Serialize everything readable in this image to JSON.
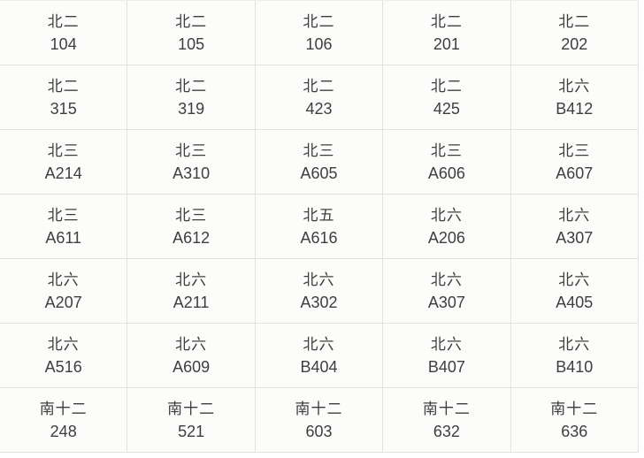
{
  "colors": {
    "cell_background": "#fcfcfb",
    "border": "#e2e2e0",
    "text": "#3e3e3e",
    "page_background": "#ffffff"
  },
  "grid": {
    "columns": 5,
    "row_count": 7,
    "rows": [
      [
        {
          "building": "北二",
          "room": "104"
        },
        {
          "building": "北二",
          "room": "105"
        },
        {
          "building": "北二",
          "room": "106"
        },
        {
          "building": "北二",
          "room": "201"
        },
        {
          "building": "北二",
          "room": "202"
        }
      ],
      [
        {
          "building": "北二",
          "room": "315"
        },
        {
          "building": "北二",
          "room": "319"
        },
        {
          "building": "北二",
          "room": "423"
        },
        {
          "building": "北二",
          "room": "425"
        },
        {
          "building": "北六",
          "room": "B412"
        }
      ],
      [
        {
          "building": "北三",
          "room": "A214"
        },
        {
          "building": "北三",
          "room": "A310"
        },
        {
          "building": "北三",
          "room": "A605"
        },
        {
          "building": "北三",
          "room": "A606"
        },
        {
          "building": "北三",
          "room": "A607"
        }
      ],
      [
        {
          "building": "北三",
          "room": "A611"
        },
        {
          "building": "北三",
          "room": "A612"
        },
        {
          "building": "北五",
          "room": "A616"
        },
        {
          "building": "北六",
          "room": "A206"
        },
        {
          "building": "北六",
          "room": "A307"
        }
      ],
      [
        {
          "building": "北六",
          "room": "A207"
        },
        {
          "building": "北六",
          "room": "A211"
        },
        {
          "building": "北六",
          "room": "A302"
        },
        {
          "building": "北六",
          "room": "A307"
        },
        {
          "building": "北六",
          "room": "A405"
        }
      ],
      [
        {
          "building": "北六",
          "room": "A516"
        },
        {
          "building": "北六",
          "room": "A609"
        },
        {
          "building": "北六",
          "room": "B404"
        },
        {
          "building": "北六",
          "room": "B407"
        },
        {
          "building": "北六",
          "room": "B410"
        }
      ],
      [
        {
          "building": "南十二",
          "room": "248"
        },
        {
          "building": "南十二",
          "room": "521"
        },
        {
          "building": "南十二",
          "room": "603"
        },
        {
          "building": "南十二",
          "room": "632"
        },
        {
          "building": "南十二",
          "room": "636"
        }
      ]
    ]
  }
}
